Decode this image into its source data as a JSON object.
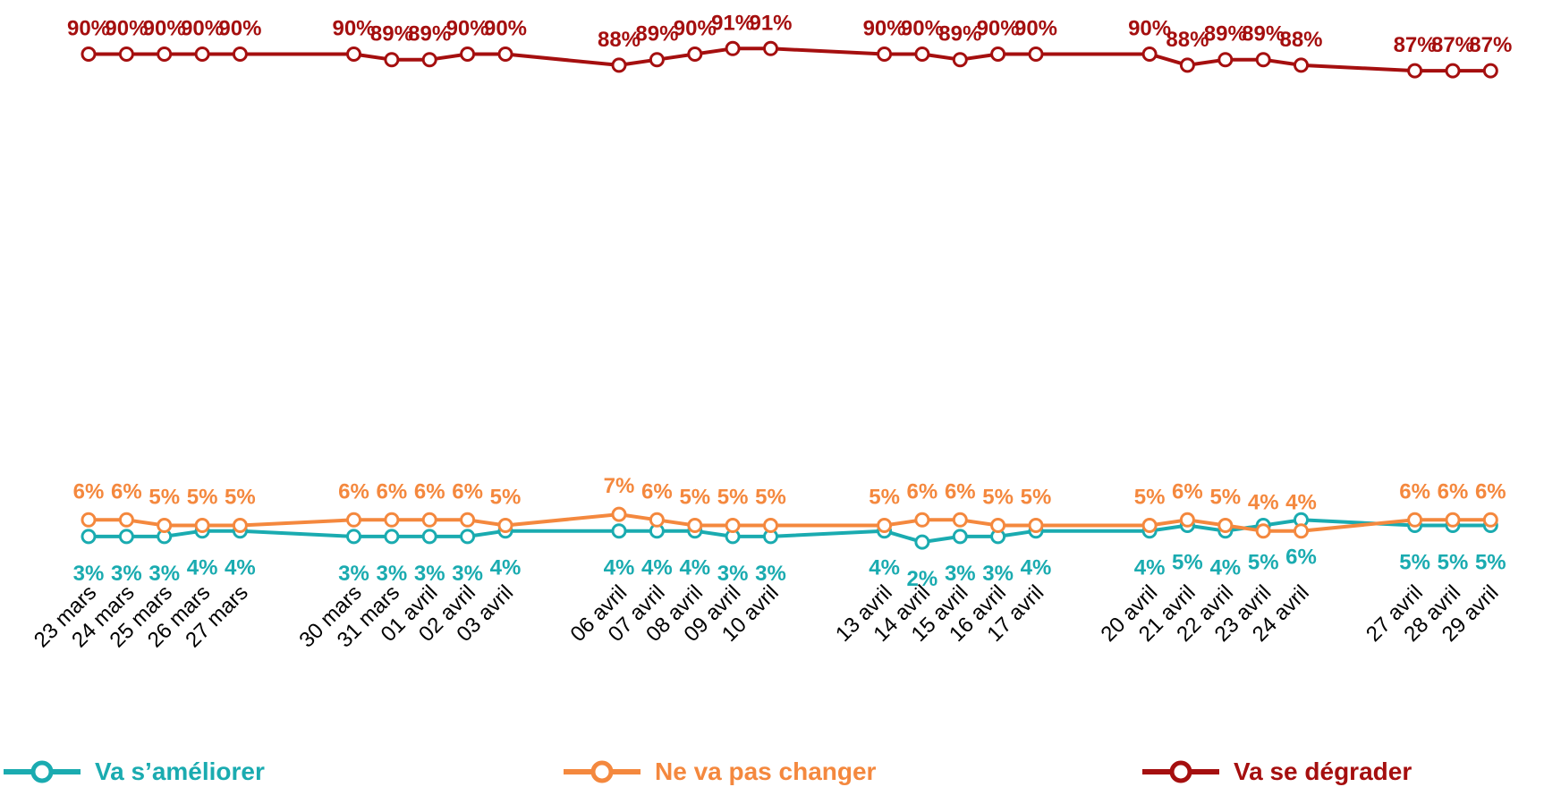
{
  "chart_data": {
    "type": "line",
    "title": "",
    "xlabel": "",
    "ylabel": "",
    "ylim": [
      0,
      100
    ],
    "grid": false,
    "legend_position": "bottom",
    "categories": [
      "23 mars",
      "24 mars",
      "25 mars",
      "26 mars",
      "27 mars",
      "30 mars",
      "31 mars",
      "01 avril",
      "02 avril",
      "03 avril",
      "06 avril",
      "07 avril",
      "08 avril",
      "09 avril",
      "10 avril",
      "13 avril",
      "14 avril",
      "15 avril",
      "16 avril",
      "17 avril",
      "20 avril",
      "21 avril",
      "22 avril",
      "23 avril",
      "24 avril",
      "27 avril",
      "28 avril",
      "29 avril"
    ],
    "day_index": [
      0,
      1,
      2,
      3,
      4,
      7,
      8,
      9,
      10,
      11,
      14,
      15,
      16,
      17,
      18,
      21,
      22,
      23,
      24,
      25,
      28,
      29,
      30,
      31,
      32,
      35,
      36,
      37
    ],
    "series": [
      {
        "key": "ameliorer",
        "name": "Va s’améliorer",
        "color": "#1AABB0",
        "label_position": "below",
        "values": [
          3,
          3,
          3,
          4,
          4,
          3,
          3,
          3,
          3,
          4,
          4,
          4,
          4,
          3,
          3,
          4,
          2,
          3,
          3,
          4,
          4,
          5,
          4,
          5,
          6,
          5,
          5,
          5
        ],
        "labels": [
          "3%",
          "3%",
          "3%",
          "4%",
          "4%",
          "3%",
          "3%",
          "3%",
          "3%",
          "4%",
          "4%",
          "4%",
          "4%",
          "3%",
          "3%",
          "4%",
          "2%",
          "3%",
          "3%",
          "4%",
          "4%",
          "5%",
          "4%",
          "5%",
          "6%",
          "5%",
          "5%",
          "5%"
        ]
      },
      {
        "key": "pas_changer",
        "name": "Ne va pas changer",
        "color": "#F4883E",
        "label_position": "above",
        "values": [
          6,
          6,
          5,
          5,
          5,
          6,
          6,
          6,
          6,
          5,
          7,
          6,
          5,
          5,
          5,
          5,
          6,
          6,
          5,
          5,
          5,
          6,
          5,
          4,
          4,
          6,
          6,
          6
        ],
        "labels": [
          "6%",
          "6%",
          "5%",
          "5%",
          "5%",
          "6%",
          "6%",
          "6%",
          "6%",
          "5%",
          "7%",
          "6%",
          "5%",
          "5%",
          "5%",
          "5%",
          "6%",
          "6%",
          "5%",
          "5%",
          "5%",
          "6%",
          "5%",
          "4%",
          "4%",
          "6%",
          "6%",
          "6%"
        ]
      },
      {
        "key": "degrader",
        "name": "Va se dégrader",
        "color": "#A50F0F",
        "label_position": "above",
        "values": [
          90,
          90,
          90,
          90,
          90,
          90,
          89,
          89,
          90,
          90,
          88,
          89,
          90,
          91,
          91,
          90,
          90,
          89,
          90,
          90,
          90,
          88,
          89,
          89,
          88,
          87,
          87,
          87
        ],
        "labels": [
          "90%",
          "90%",
          "90%",
          "90%",
          "90%",
          "90%",
          "89%",
          "89%",
          "90%",
          "90%",
          "88%",
          "89%",
          "90%",
          "91%",
          "91%",
          "90%",
          "90%",
          "89%",
          "90%",
          "90%",
          "90%",
          "88%",
          "89%",
          "89%",
          "88%",
          "87%",
          "87%",
          "87%"
        ]
      }
    ]
  }
}
